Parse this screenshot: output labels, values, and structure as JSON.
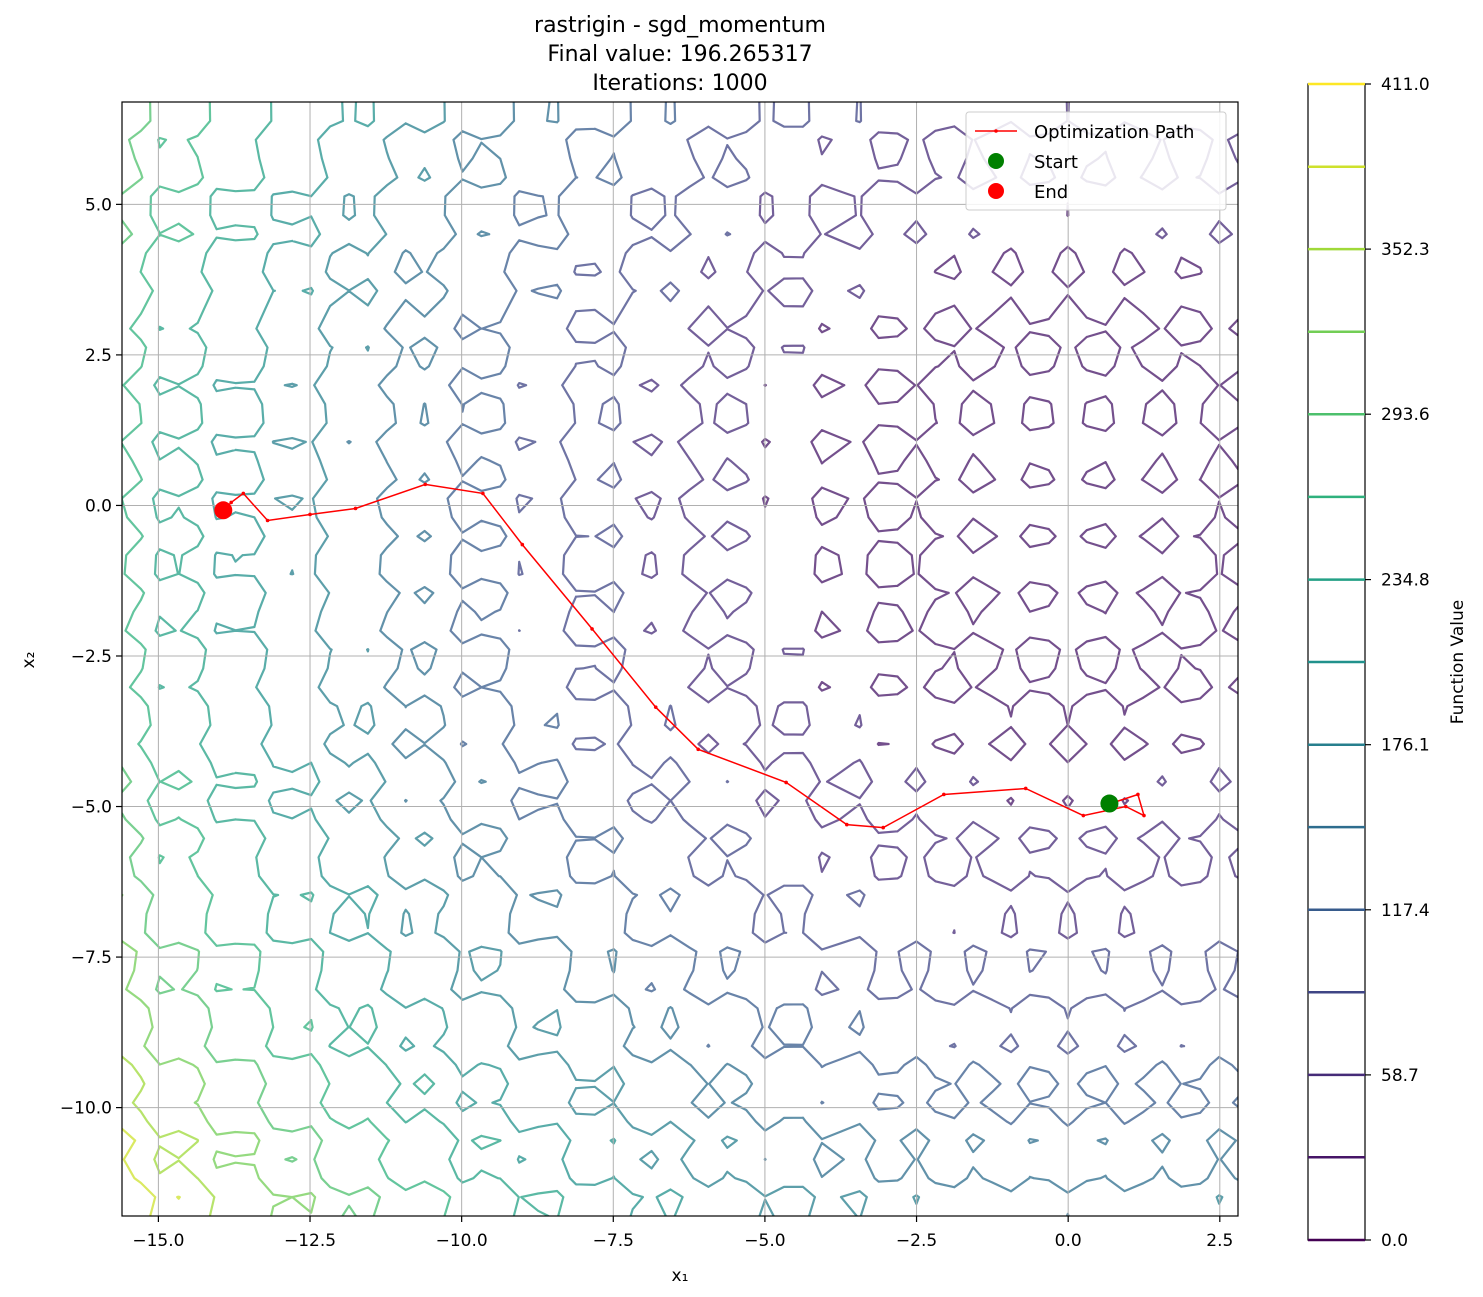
{
  "chart_data": {
    "type": "contour",
    "function": "rastrigin",
    "title_lines": [
      "rastrigin - sgd_momentum",
      "Final value: 196.265317",
      "Iterations: 1000"
    ],
    "xlabel": "x₁",
    "ylabel": "x₂",
    "xlim": [
      -15.6,
      2.8
    ],
    "ylim": [
      -11.8,
      6.7
    ],
    "xticks": [
      -15.0,
      -12.5,
      -10.0,
      -7.5,
      -5.0,
      -2.5,
      0.0,
      2.5
    ],
    "xtick_labels": [
      "−15.0",
      "−12.5",
      "−10.0",
      "−7.5",
      "−5.0",
      "−2.5",
      "0.0",
      "2.5"
    ],
    "yticks": [
      5.0,
      2.5,
      0.0,
      -2.5,
      -5.0,
      -7.5,
      -10.0
    ],
    "ytick_labels": [
      "5.0",
      "2.5",
      "0.0",
      "−2.5",
      "−5.0",
      "−7.5",
      "−10.0"
    ],
    "grid": true,
    "colorbar": {
      "label": "Function Value",
      "range": [
        0.0,
        411.0
      ],
      "tick_values": [
        0.0,
        58.7,
        117.4,
        176.1,
        234.8,
        293.6,
        352.3,
        411.0
      ],
      "tick_labels": [
        "0.0",
        "58.7",
        "117.4",
        "176.1",
        "234.8",
        "293.6",
        "352.3",
        "411.0"
      ],
      "levels": [
        0,
        29.4,
        58.7,
        88.1,
        117.4,
        146.8,
        176.1,
        205.5,
        234.8,
        264.2,
        293.6,
        322.9,
        352.3,
        381.6,
        411.0
      ],
      "colormap": "viridis"
    },
    "legend": {
      "placement": "top-right",
      "entries": [
        {
          "label": "Optimization Path",
          "color": "#ff0000",
          "marker": "line"
        },
        {
          "label": "Start",
          "color": "#008000",
          "marker": "circle"
        },
        {
          "label": "End",
          "color": "#ff0000",
          "marker": "circle"
        }
      ]
    },
    "path": {
      "color": "#ff0000",
      "x": [
        0.7,
        1.15,
        1.25,
        0.95,
        0.25,
        -0.7,
        -2.05,
        -3.05,
        -3.65,
        -4.65,
        -6.1,
        -6.8,
        -7.85,
        -9.0,
        -9.65,
        -10.6,
        -11.75,
        -12.5,
        -13.2,
        -13.6,
        -13.8,
        -13.9,
        -13.95
      ],
      "y": [
        -4.95,
        -4.8,
        -5.15,
        -5.0,
        -5.15,
        -4.7,
        -4.8,
        -5.35,
        -5.3,
        -4.6,
        -4.05,
        -3.35,
        -2.05,
        -0.65,
        0.2,
        0.35,
        -0.05,
        -0.15,
        -0.25,
        0.2,
        0.05,
        -0.05,
        -0.1
      ]
    },
    "start": {
      "x": 0.68,
      "y": -4.95,
      "color": "#008000"
    },
    "end": {
      "x": -13.93,
      "y": -0.08,
      "color": "#ff0000"
    }
  }
}
